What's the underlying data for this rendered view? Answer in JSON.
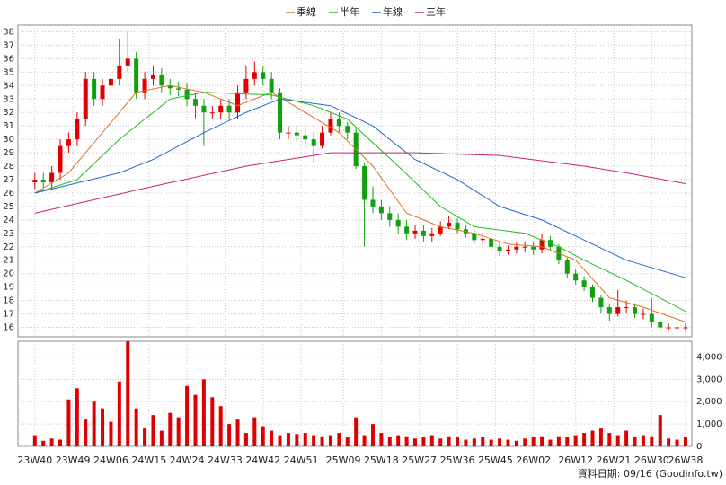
{
  "chart_data": {
    "type": "candlestick",
    "x": [
      0,
      2,
      4,
      6,
      8,
      10,
      12,
      14,
      16,
      18,
      20,
      22,
      24,
      26,
      28,
      30,
      32,
      34,
      36,
      38,
      40,
      42,
      44,
      46,
      48,
      50,
      52,
      54,
      56,
      58,
      60,
      62,
      64,
      66,
      68,
      70,
      72,
      74,
      76,
      78,
      80,
      82,
      84,
      86,
      88,
      90,
      92,
      94,
      96,
      98,
      100,
      102,
      104,
      106,
      108,
      110,
      112,
      114,
      116,
      118,
      120,
      122,
      124,
      126,
      128,
      130,
      132,
      134,
      136,
      138,
      140,
      142,
      144,
      146,
      148,
      150,
      152,
      154
    ],
    "open": [
      26.8,
      27,
      26.8,
      27.5,
      29.5,
      30,
      31.5,
      34.5,
      33,
      34,
      34.5,
      35.5,
      36,
      33.5,
      34.5,
      34.8,
      34,
      33.8,
      33.7,
      33,
      32.5,
      32,
      32,
      32.5,
      32,
      33.5,
      34.5,
      35,
      34.5,
      33.5,
      30.5,
      30.5,
      30.3,
      30,
      29.5,
      30.5,
      31.5,
      31,
      30.5,
      28,
      25.5,
      25,
      24.5,
      24,
      23.5,
      23,
      23.2,
      22.8,
      23,
      23.5,
      23.8,
      23.3,
      23,
      22.5,
      22.6,
      22,
      21.7,
      21.8,
      22,
      22,
      21.8,
      22.5,
      22,
      21,
      20,
      19.5,
      19,
      18.2,
      17.5,
      17,
      17.5,
      17.5,
      17,
      17,
      16.4,
      16,
      16,
      16
    ],
    "high": [
      27.5,
      27.5,
      28,
      30,
      30.5,
      32,
      35,
      35,
      34.5,
      35,
      37.5,
      38,
      36.5,
      35,
      35.5,
      35.3,
      34.5,
      34.3,
      34.2,
      33.5,
      33,
      32.5,
      33,
      33,
      34,
      35.5,
      35.8,
      35.5,
      35,
      33.8,
      31,
      31,
      30.8,
      30.5,
      31,
      32,
      32,
      31.3,
      30.8,
      28.3,
      26.5,
      25.5,
      25,
      24.5,
      24,
      23.6,
      23.6,
      23.4,
      23.9,
      24.3,
      24.1,
      23.6,
      23.3,
      23,
      22.9,
      22.3,
      22.1,
      22.3,
      22.4,
      22.3,
      23,
      22.8,
      22.2,
      21.2,
      20.3,
      19.8,
      19.2,
      18.4,
      17.8,
      18.8,
      18,
      17.8,
      17.4,
      18.2,
      16.6,
      16.3,
      16.3,
      16.3
    ],
    "low": [
      26.3,
      26.3,
      26.3,
      27,
      29,
      29.5,
      31,
      32.5,
      32.5,
      33.5,
      34,
      35,
      33,
      33,
      34,
      33.5,
      33.3,
      33.2,
      32.5,
      31.5,
      29.5,
      31.5,
      31.5,
      31.5,
      31.5,
      33,
      34,
      34,
      33,
      30,
      30,
      29.8,
      29.5,
      28.3,
      29.3,
      30.3,
      30.5,
      30,
      27.8,
      22,
      24.5,
      24,
      23.5,
      23,
      22.5,
      22.6,
      22.4,
      22.4,
      22.8,
      23.3,
      23,
      22.7,
      22.2,
      22.2,
      21.6,
      21.3,
      21.4,
      21.5,
      21.6,
      21.4,
      21.5,
      21.7,
      20.7,
      19.7,
      19.2,
      18.7,
      17.9,
      17.1,
      16.5,
      16.8,
      17.1,
      16.7,
      16.6,
      16,
      15.7,
      15.8,
      15.8,
      15.8
    ],
    "close": [
      27,
      26.8,
      27.5,
      29.5,
      30,
      31.5,
      34.5,
      33,
      34,
      34.5,
      35.5,
      36,
      33.5,
      34.5,
      34.8,
      34,
      33.8,
      33.7,
      33,
      32.5,
      32,
      32,
      32.5,
      32,
      33.5,
      34.5,
      35,
      34.5,
      33.5,
      30.5,
      30.5,
      30.3,
      30,
      29.5,
      30.5,
      31.5,
      31,
      30.5,
      28,
      25.5,
      25,
      24.5,
      24,
      23.5,
      23,
      23.2,
      22.8,
      23,
      23.5,
      23.8,
      23.3,
      23,
      22.5,
      22.6,
      22,
      21.7,
      21.8,
      22,
      22,
      21.8,
      22.5,
      22,
      21,
      20,
      19.5,
      19,
      18.2,
      17.5,
      17,
      17.5,
      17.5,
      17,
      17,
      16.4,
      16,
      16,
      16,
      16
    ],
    "up_color": "#e00000",
    "down_color": "#10a010",
    "xlim": [
      -4,
      155.5
    ],
    "ylim": [
      15.3,
      38.5
    ],
    "xticks": [
      {
        "value": 0,
        "label": "23W40"
      },
      {
        "value": 9,
        "label": "23W49"
      },
      {
        "value": 18,
        "label": "24W06"
      },
      {
        "value": 27,
        "label": "24W15"
      },
      {
        "value": 36,
        "label": "24W24"
      },
      {
        "value": 45,
        "label": "24W33"
      },
      {
        "value": 54,
        "label": "24W42"
      },
      {
        "value": 63,
        "label": "24W51"
      },
      {
        "value": 73,
        "label": "25W09"
      },
      {
        "value": 82,
        "label": "25W18"
      },
      {
        "value": 91,
        "label": "25W27"
      },
      {
        "value": 100,
        "label": "25W36"
      },
      {
        "value": 109,
        "label": "25W45"
      },
      {
        "value": 118,
        "label": "26W02"
      },
      {
        "value": 128,
        "label": "26W12"
      },
      {
        "value": 137,
        "label": "26W21"
      },
      {
        "value": 146,
        "label": "26W30"
      },
      {
        "value": 154,
        "label": "26W38"
      }
    ],
    "yticks": [
      16,
      17,
      18,
      19,
      20,
      21,
      22,
      23,
      24,
      25,
      26,
      27,
      28,
      29,
      30,
      31,
      32,
      33,
      34,
      35,
      36,
      37,
      38
    ],
    "grid": true,
    "series": [
      {
        "name": "季線",
        "color": "#e07020",
        "x": [
          0,
          8,
          16,
          24,
          32,
          40,
          48,
          56,
          64,
          72,
          80,
          88,
          96,
          104,
          112,
          120,
          128,
          136,
          144,
          154
        ],
        "values": [
          26,
          27.5,
          30.5,
          33.5,
          34,
          33.5,
          32.5,
          33.5,
          32,
          30.5,
          28,
          24.5,
          23.5,
          23,
          22.2,
          22,
          21,
          18.2,
          17.5,
          16.4
        ]
      },
      {
        "name": "半年",
        "color": "#22bb22",
        "x": [
          0,
          10,
          20,
          32,
          40,
          56,
          66,
          74,
          86,
          96,
          104,
          116,
          124,
          130,
          140,
          154
        ],
        "values": [
          26,
          27,
          30,
          33,
          33.5,
          33.3,
          32.5,
          31.5,
          28,
          25,
          23.5,
          23,
          22,
          21,
          19.5,
          17.2
        ]
      },
      {
        "name": "年線",
        "color": "#2266cc",
        "x": [
          0,
          20,
          28,
          40,
          50,
          58,
          70,
          80,
          90,
          100,
          110,
          120,
          130,
          140,
          154
        ],
        "values": [
          26,
          27.5,
          28.5,
          30.5,
          32,
          33,
          32.5,
          31,
          28.5,
          27,
          25,
          24,
          22.5,
          21,
          19.7
        ]
      },
      {
        "name": "三年",
        "color": "#cc2277",
        "x": [
          0,
          14,
          28,
          50,
          70,
          90,
          110,
          130,
          140,
          154
        ],
        "values": [
          24.5,
          25.5,
          26.5,
          28,
          29,
          29,
          28.8,
          28,
          27.5,
          26.7
        ]
      }
    ],
    "volume": {
      "color": "#dd0000",
      "ylim": [
        0,
        4700
      ],
      "yticks": [
        0,
        {
          "value": 1000,
          "label": "1,000"
        },
        {
          "value": 2000,
          "label": "2,000"
        },
        {
          "value": 3000,
          "label": "3,000"
        },
        {
          "value": 4000,
          "label": "4,000"
        }
      ],
      "values": [
        500,
        250,
        350,
        300,
        2100,
        2600,
        1200,
        2000,
        1700,
        1100,
        2900,
        4700,
        1700,
        800,
        1400,
        700,
        1500,
        1300,
        2700,
        2300,
        3000,
        2200,
        1800,
        1000,
        1200,
        600,
        1300,
        900,
        700,
        500,
        600,
        550,
        600,
        500,
        450,
        500,
        600,
        400,
        1300,
        500,
        1000,
        600,
        400,
        500,
        450,
        350,
        400,
        500,
        350,
        450,
        400,
        300,
        350,
        400,
        300,
        350,
        300,
        250,
        350,
        400,
        450,
        300,
        450,
        400,
        500,
        600,
        700,
        800,
        600,
        500,
        700,
        400,
        500,
        450,
        1400,
        350,
        300,
        400
      ]
    },
    "note": "資料日期: 09/16 (Goodinfo.tw)"
  }
}
